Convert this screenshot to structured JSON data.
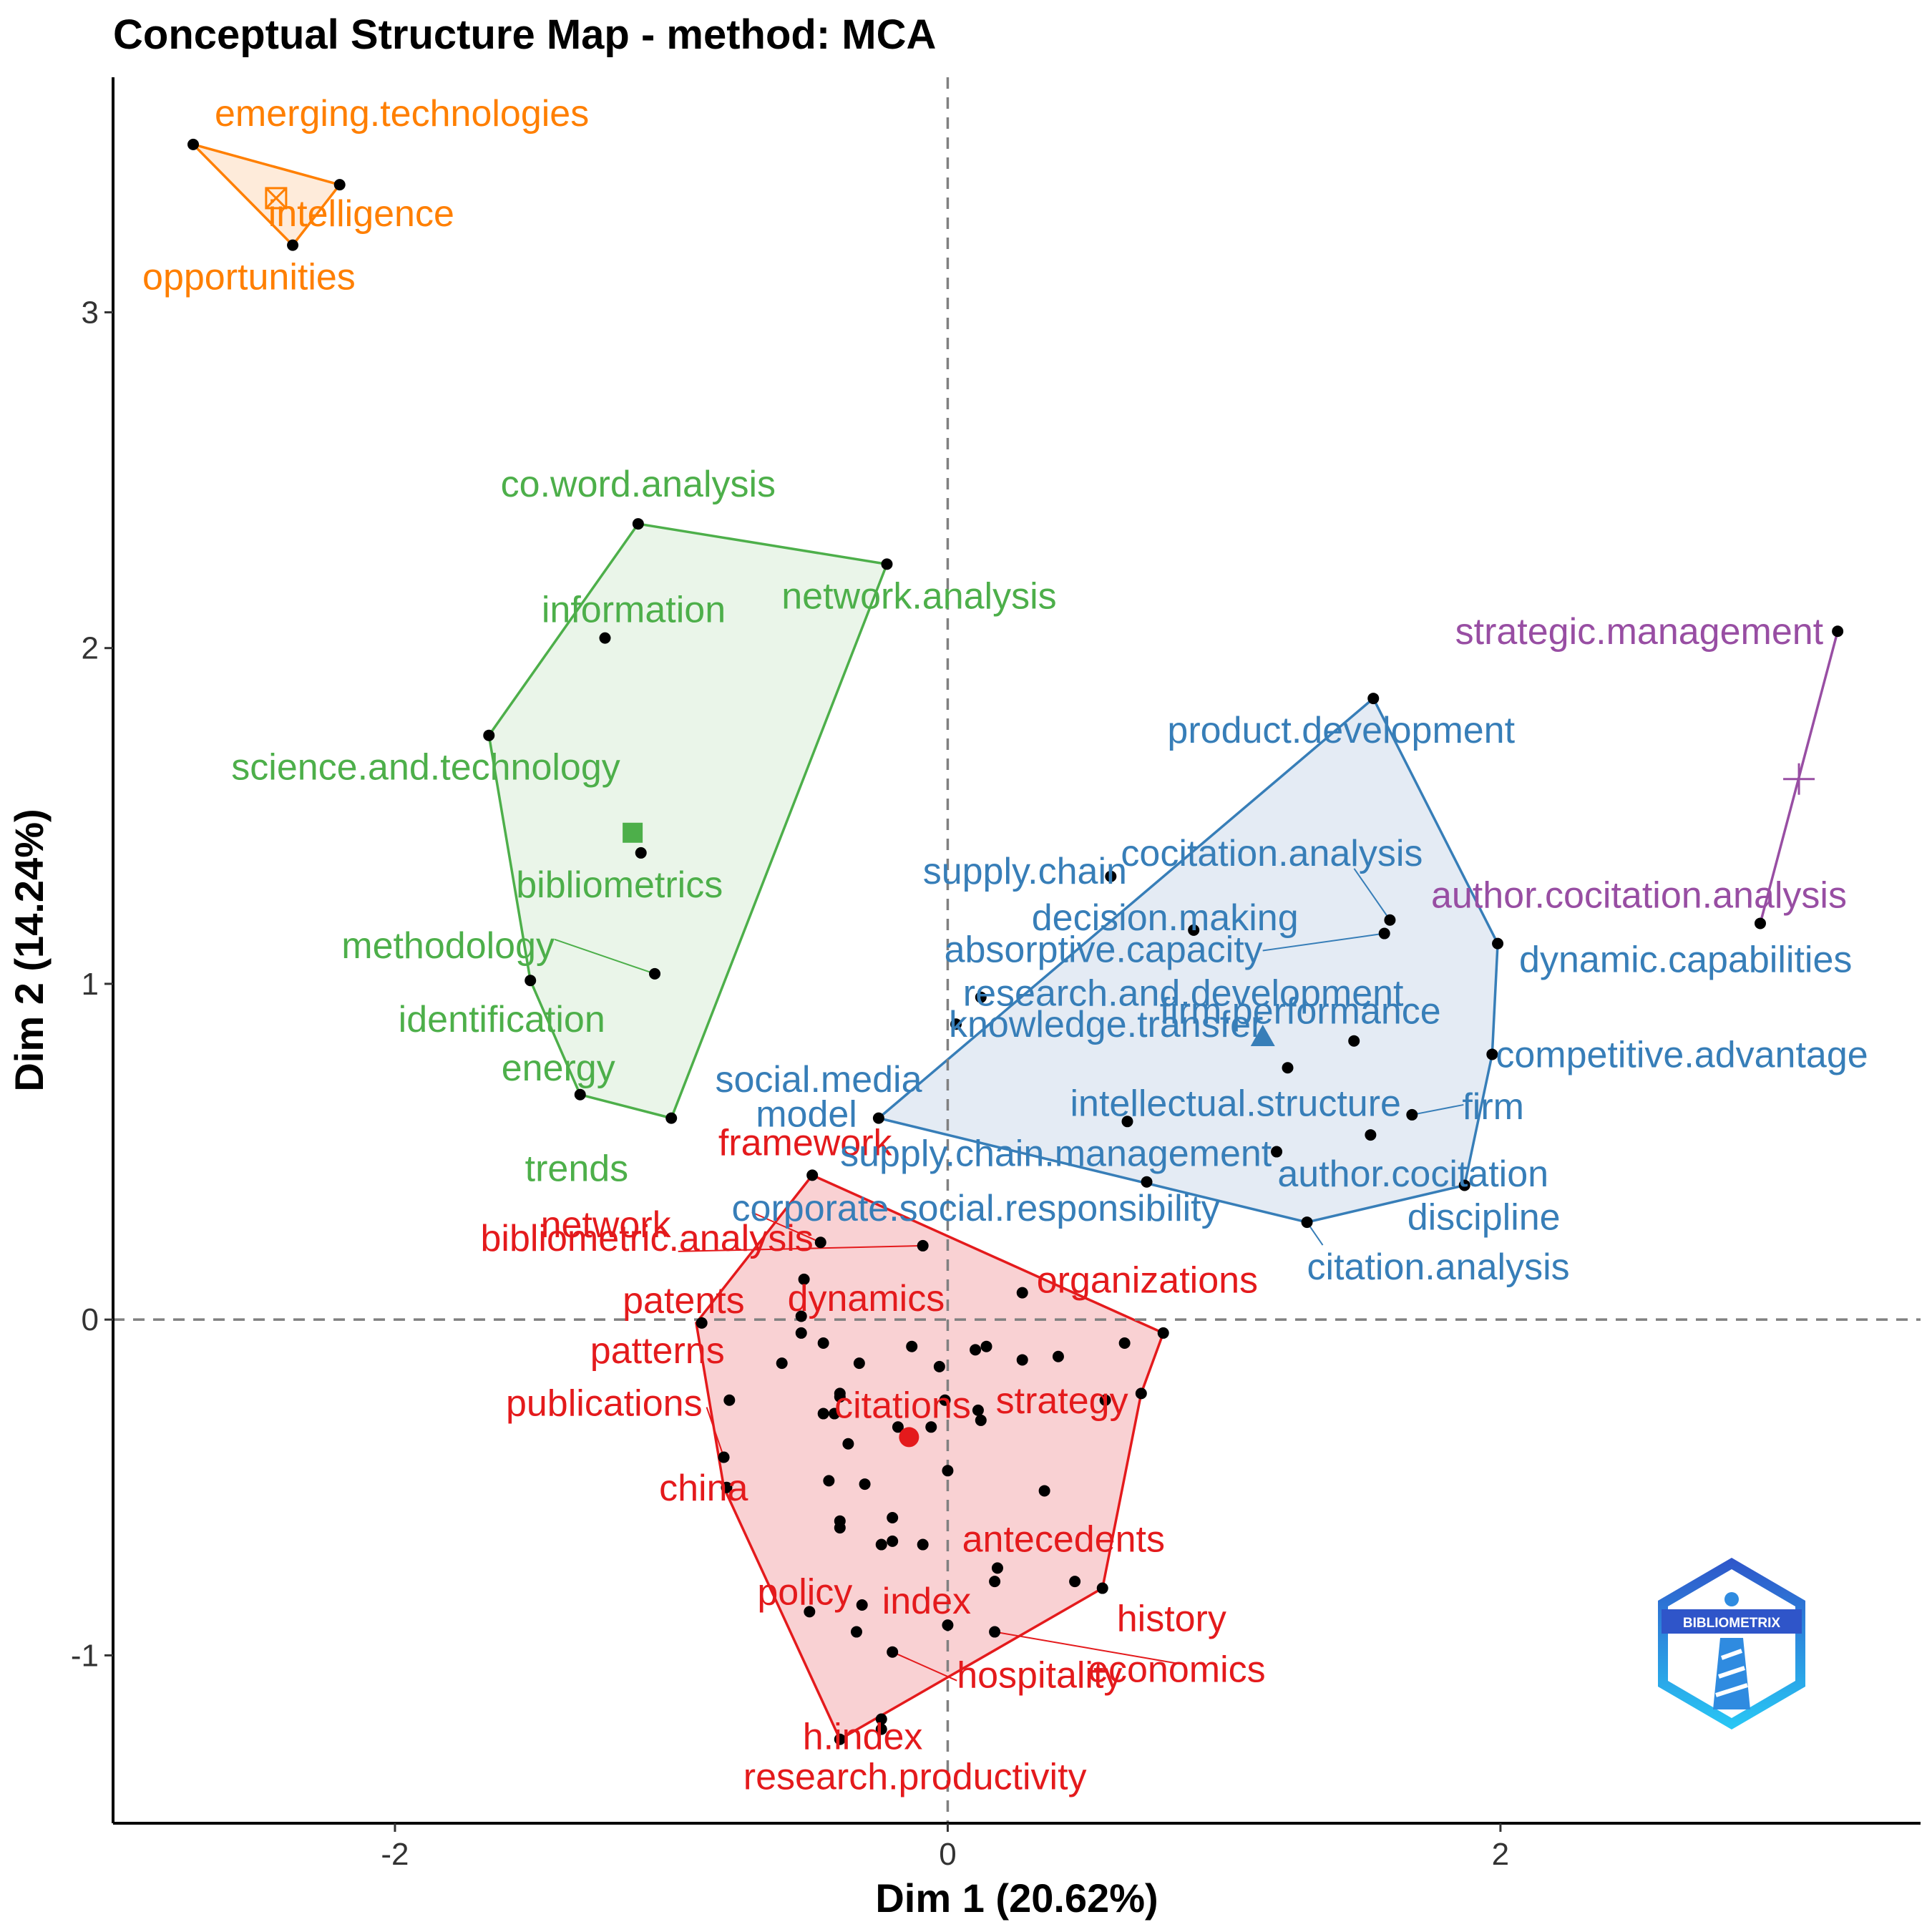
{
  "chart_data": {
    "type": "scatter",
    "title": "Conceptual Structure Map - method: MCA",
    "xlabel": "Dim 1 (20.62%)",
    "ylabel": "Dim 2 (14.24%)",
    "xlim": [
      -3.02,
      3.52
    ],
    "ylim": [
      -1.5,
      3.7
    ],
    "xticks": [
      {
        "value": -2,
        "label": "-2"
      },
      {
        "value": 0,
        "label": "0"
      },
      {
        "value": 2,
        "label": "2"
      }
    ],
    "yticks": [
      {
        "value": -1,
        "label": "-1"
      },
      {
        "value": 0,
        "label": "0"
      },
      {
        "value": 1,
        "label": "1"
      },
      {
        "value": 2,
        "label": "2"
      },
      {
        "value": 3,
        "label": "3"
      }
    ],
    "reference_lines": {
      "x": 0,
      "y": 0
    },
    "logo_text": "BIBLIOMETRIX",
    "clusters": [
      {
        "name": "cluster-1",
        "color": "#E41A1C",
        "fill": "#F4A3A8",
        "centroid": {
          "x": -0.14,
          "y": -0.35,
          "marker": "circle"
        },
        "hull": [
          [
            -0.49,
            0.43
          ],
          [
            0.78,
            -0.04
          ],
          [
            0.7,
            -0.22
          ],
          [
            0.56,
            -0.8
          ],
          [
            -0.39,
            -1.25
          ],
          [
            -0.81,
            -0.5
          ],
          [
            -0.91,
            -0.01
          ]
        ],
        "points": [
          {
            "x": -0.49,
            "y": 0.43,
            "label": "framework"
          },
          {
            "x": -0.46,
            "y": 0.23,
            "label": "bibliometric.analysis"
          },
          {
            "x": -0.09,
            "y": 0.22,
            "label": "network"
          },
          {
            "x": -0.89,
            "y": -0.01,
            "label": "patents"
          },
          {
            "x": -0.52,
            "y": 0.12,
            "label": "dynamics"
          },
          {
            "x": 0.27,
            "y": 0.08,
            "label": "organizations"
          },
          {
            "x": 0.64,
            "y": -0.07,
            "label": "strategy"
          },
          {
            "x": -0.6,
            "y": -0.13,
            "label": "patterns"
          },
          {
            "x": -0.81,
            "y": -0.41,
            "label": "publications"
          },
          {
            "x": -0.41,
            "y": -0.28,
            "label": "citations"
          },
          {
            "x": -0.8,
            "y": -0.5,
            "label": "china"
          },
          {
            "x": 0.35,
            "y": -0.51,
            "label": "antecedents"
          },
          {
            "x": -0.5,
            "y": -0.87,
            "label": "policy"
          },
          {
            "x": -0.31,
            "y": -0.85,
            "label": "index"
          },
          {
            "x": 0.56,
            "y": -0.8,
            "label": "history"
          },
          {
            "x": -0.2,
            "y": -0.99,
            "label": "hospitality"
          },
          {
            "x": 0.17,
            "y": -0.93,
            "label": "economics"
          },
          {
            "x": -0.24,
            "y": -1.22,
            "label": "h.index"
          },
          {
            "x": -0.39,
            "y": -1.25,
            "label": "research.productivity"
          },
          {
            "x": 0.78,
            "y": -0.04,
            "label": ""
          },
          {
            "x": 0.7,
            "y": -0.22,
            "label": ""
          },
          {
            "x": -0.53,
            "y": 0.01,
            "label": ""
          },
          {
            "x": -0.53,
            "y": -0.04,
            "label": ""
          },
          {
            "x": -0.45,
            "y": -0.07,
            "label": ""
          },
          {
            "x": -0.32,
            "y": -0.13,
            "label": ""
          },
          {
            "x": -0.13,
            "y": -0.08,
            "label": ""
          },
          {
            "x": -0.03,
            "y": -0.14,
            "label": ""
          },
          {
            "x": 0.1,
            "y": -0.09,
            "label": ""
          },
          {
            "x": 0.14,
            "y": -0.08,
            "label": ""
          },
          {
            "x": 0.27,
            "y": -0.12,
            "label": ""
          },
          {
            "x": 0.4,
            "y": -0.11,
            "label": ""
          },
          {
            "x": 0.57,
            "y": -0.24,
            "label": ""
          },
          {
            "x": -0.79,
            "y": -0.24,
            "label": ""
          },
          {
            "x": -0.39,
            "y": -0.22,
            "label": ""
          },
          {
            "x": -0.39,
            "y": -0.23,
            "label": ""
          },
          {
            "x": -0.45,
            "y": -0.28,
            "label": ""
          },
          {
            "x": -0.01,
            "y": -0.24,
            "label": ""
          },
          {
            "x": 0.11,
            "y": -0.27,
            "label": ""
          },
          {
            "x": 0.12,
            "y": -0.3,
            "label": ""
          },
          {
            "x": -0.18,
            "y": -0.32,
            "label": ""
          },
          {
            "x": -0.06,
            "y": -0.32,
            "label": ""
          },
          {
            "x": -0.36,
            "y": -0.37,
            "label": ""
          },
          {
            "x": 0.0,
            "y": -0.45,
            "label": ""
          },
          {
            "x": -0.43,
            "y": -0.48,
            "label": ""
          },
          {
            "x": -0.3,
            "y": -0.49,
            "label": ""
          },
          {
            "x": -0.39,
            "y": -0.6,
            "label": ""
          },
          {
            "x": -0.39,
            "y": -0.62,
            "label": ""
          },
          {
            "x": -0.2,
            "y": -0.59,
            "label": ""
          },
          {
            "x": -0.24,
            "y": -0.67,
            "label": ""
          },
          {
            "x": -0.2,
            "y": -0.66,
            "label": ""
          },
          {
            "x": -0.09,
            "y": -0.67,
            "label": ""
          },
          {
            "x": 0.18,
            "y": -0.74,
            "label": ""
          },
          {
            "x": 0.17,
            "y": -0.78,
            "label": ""
          },
          {
            "x": 0.46,
            "y": -0.78,
            "label": ""
          },
          {
            "x": -0.33,
            "y": -0.93,
            "label": ""
          },
          {
            "x": 0.0,
            "y": -0.91,
            "label": ""
          },
          {
            "x": -0.24,
            "y": -1.19,
            "label": ""
          }
        ]
      },
      {
        "name": "cluster-2",
        "color": "#377EB8",
        "fill": "#C9D8EA",
        "centroid": {
          "x": 1.14,
          "y": 0.84,
          "marker": "triangle"
        },
        "hull": [
          [
            1.54,
            1.85
          ],
          [
            1.99,
            1.12
          ],
          [
            1.97,
            0.79
          ],
          [
            1.87,
            0.4
          ],
          [
            1.3,
            0.29
          ],
          [
            -0.25,
            0.6
          ]
        ],
        "points": [
          {
            "x": 1.54,
            "y": 1.85,
            "label": "product.development"
          },
          {
            "x": 0.59,
            "y": 1.32,
            "label": "supply.chain"
          },
          {
            "x": 1.6,
            "y": 1.19,
            "label": "cocitation.analysis"
          },
          {
            "x": 0.89,
            "y": 1.16,
            "label": "decision.making"
          },
          {
            "x": 1.58,
            "y": 1.15,
            "label": "absorptive.capacity"
          },
          {
            "x": 1.99,
            "y": 1.12,
            "label": "dynamic.capabilities"
          },
          {
            "x": 0.12,
            "y": 0.96,
            "label": "research.and.development"
          },
          {
            "x": 1.47,
            "y": 0.83,
            "label": "firm.performance"
          },
          {
            "x": 0.03,
            "y": 0.88,
            "label": "knowledge.transfer"
          },
          {
            "x": 1.97,
            "y": 0.79,
            "label": "competitive.advantage"
          },
          {
            "x": 1.23,
            "y": 0.75,
            "label": "social.media"
          },
          {
            "x": -0.25,
            "y": 0.6,
            "label": "model"
          },
          {
            "x": 0.65,
            "y": 0.59,
            "label": "intellectual.structure"
          },
          {
            "x": 1.68,
            "y": 0.61,
            "label": "firm"
          },
          {
            "x": 1.53,
            "y": 0.55,
            "label": "author.cocitation"
          },
          {
            "x": 1.19,
            "y": 0.5,
            "label": "supply.chain.management"
          },
          {
            "x": 0.72,
            "y": 0.41,
            "label": "corporate.social.responsibility"
          },
          {
            "x": 1.87,
            "y": 0.4,
            "label": "discipline"
          },
          {
            "x": 1.3,
            "y": 0.29,
            "label": "citation.analysis"
          }
        ]
      },
      {
        "name": "cluster-3",
        "color": "#4DAF4A",
        "fill": "#D5EBD3",
        "centroid": {
          "x": -1.14,
          "y": 1.45,
          "marker": "square"
        },
        "hull": [
          [
            -1.12,
            2.37
          ],
          [
            -0.22,
            2.25
          ],
          [
            -1.0,
            0.6
          ],
          [
            -1.33,
            0.67
          ],
          [
            -1.51,
            1.01
          ],
          [
            -1.66,
            1.74
          ]
        ],
        "points": [
          {
            "x": -1.12,
            "y": 2.37,
            "label": "co.word.analysis"
          },
          {
            "x": -1.24,
            "y": 2.03,
            "label": "information"
          },
          {
            "x": -0.22,
            "y": 2.25,
            "label": "network.analysis"
          },
          {
            "x": -1.66,
            "y": 1.74,
            "label": "science.and.technology"
          },
          {
            "x": -1.11,
            "y": 1.39,
            "label": "bibliometrics"
          },
          {
            "x": -1.06,
            "y": 1.03,
            "label": "methodology"
          },
          {
            "x": -1.51,
            "y": 1.01,
            "label": "identification"
          },
          {
            "x": -1.33,
            "y": 0.67,
            "label": "energy"
          },
          {
            "x": -1.0,
            "y": 0.6,
            "label": "trends"
          }
        ]
      },
      {
        "name": "cluster-4",
        "color": "#984EA3",
        "fill": "none",
        "centroid": {
          "x": 3.08,
          "y": 1.61,
          "marker": "plus"
        },
        "hull": [
          [
            3.22,
            2.05
          ],
          [
            2.94,
            1.18
          ]
        ],
        "points": [
          {
            "x": 3.22,
            "y": 2.05,
            "label": "strategic.management"
          },
          {
            "x": 2.94,
            "y": 1.18,
            "label": "author.cocitation.analysis"
          }
        ]
      },
      {
        "name": "cluster-5",
        "color": "#FF7F00",
        "fill": "#FDD8B5",
        "centroid": {
          "x": -2.43,
          "y": 3.34,
          "marker": "square-cross"
        },
        "hull": [
          [
            -2.73,
            3.5
          ],
          [
            -2.2,
            3.38
          ],
          [
            -2.37,
            3.2
          ]
        ],
        "points": [
          {
            "x": -2.73,
            "y": 3.5,
            "label": "emerging.technologies"
          },
          {
            "x": -2.2,
            "y": 3.38,
            "label": "intelligence"
          },
          {
            "x": -2.37,
            "y": 3.2,
            "label": "opportunities"
          }
        ]
      }
    ]
  }
}
